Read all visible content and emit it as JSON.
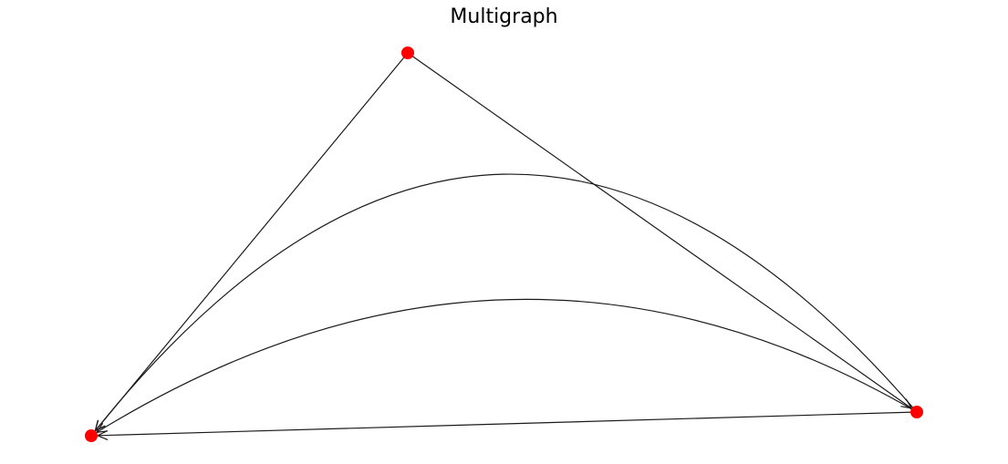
{
  "title": "Multigraph",
  "colors": {
    "node": "#ff0000",
    "edge": "#1a1a1a",
    "background": "#ffffff"
  },
  "graph": {
    "directed": true,
    "nodes": [
      {
        "id": "top"
      },
      {
        "id": "right"
      },
      {
        "id": "left"
      }
    ],
    "edges": [
      {
        "source": "top",
        "target": "left"
      },
      {
        "source": "top",
        "target": "right"
      },
      {
        "source": "right",
        "target": "left"
      },
      {
        "source": "right",
        "target": "left"
      },
      {
        "source": "right",
        "target": "left"
      }
    ]
  }
}
